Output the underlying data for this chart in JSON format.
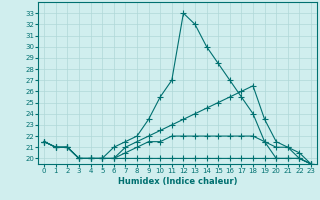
{
  "x_values": [
    0,
    1,
    2,
    3,
    4,
    5,
    6,
    7,
    8,
    9,
    10,
    11,
    12,
    13,
    14,
    15,
    16,
    17,
    18,
    19,
    20,
    21,
    22,
    23
  ],
  "line1": [
    21.5,
    21.0,
    21.0,
    20.0,
    20.0,
    20.0,
    21.0,
    21.5,
    22.0,
    23.5,
    25.5,
    27.0,
    33.0,
    32.0,
    30.0,
    28.5,
    27.0,
    25.5,
    24.0,
    21.5,
    20.0,
    20.0,
    20.0,
    19.5
  ],
  "line2": [
    21.5,
    21.0,
    21.0,
    20.0,
    20.0,
    20.0,
    20.0,
    21.0,
    21.5,
    22.0,
    22.5,
    23.0,
    23.5,
    24.0,
    24.5,
    25.0,
    25.5,
    26.0,
    26.5,
    23.5,
    21.5,
    21.0,
    20.0,
    19.5
  ],
  "line3": [
    21.5,
    21.0,
    21.0,
    20.0,
    20.0,
    20.0,
    20.0,
    20.5,
    21.0,
    21.5,
    21.5,
    22.0,
    22.0,
    22.0,
    22.0,
    22.0,
    22.0,
    22.0,
    22.0,
    21.5,
    21.0,
    21.0,
    20.5,
    19.5
  ],
  "line4": [
    21.5,
    21.0,
    21.0,
    20.0,
    20.0,
    20.0,
    20.0,
    20.0,
    20.0,
    20.0,
    20.0,
    20.0,
    20.0,
    20.0,
    20.0,
    20.0,
    20.0,
    20.0,
    20.0,
    20.0,
    20.0,
    20.0,
    20.0,
    19.5
  ],
  "color": "#007070",
  "bg_color": "#d0eeee",
  "grid_color": "#b0d8d8",
  "xlabel": "Humidex (Indice chaleur)",
  "ylim": [
    19.5,
    34.0
  ],
  "xlim": [
    -0.5,
    23.5
  ],
  "yticks": [
    20,
    21,
    22,
    23,
    24,
    25,
    26,
    27,
    28,
    29,
    30,
    31,
    32,
    33
  ],
  "xticks": [
    0,
    1,
    2,
    3,
    4,
    5,
    6,
    7,
    8,
    9,
    10,
    11,
    12,
    13,
    14,
    15,
    16,
    17,
    18,
    19,
    20,
    21,
    22,
    23
  ],
  "marker": "+",
  "markersize": 4,
  "linewidth": 0.8
}
